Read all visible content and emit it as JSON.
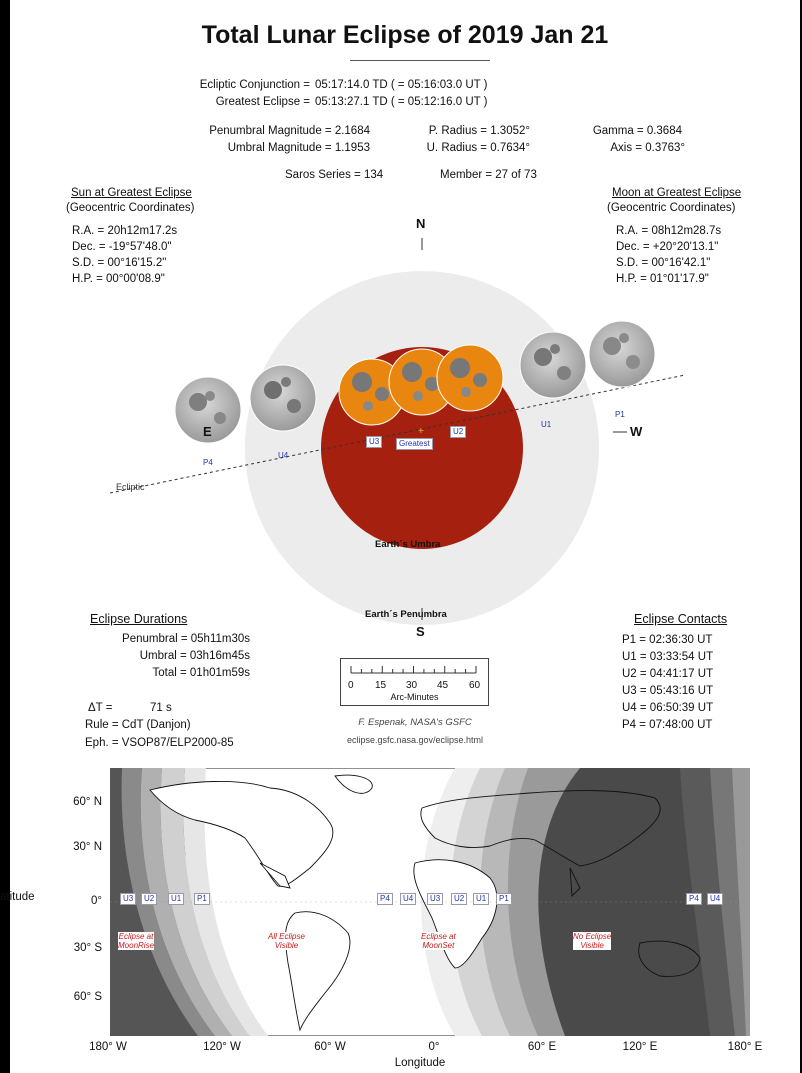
{
  "title": "Total Lunar Eclipse of  2019 Jan 21",
  "header": {
    "conjunction_label": "Ecliptic Conjunction =",
    "conjunction_value": "05:17:14.0 TD   ( = 05:16:03.0 UT )",
    "greatest_label": "Greatest Eclipse =",
    "greatest_value": "05:13:27.1 TD   ( = 05:12:16.0 UT )"
  },
  "magnitudes": {
    "penumbral": "Penumbral Magnitude =  2.1684",
    "umbral": "Umbral Magnitude =  1.1953",
    "p_radius": "P. Radius = 1.3052°",
    "u_radius": "U. Radius = 0.7634°",
    "gamma": "Gamma =  0.3684",
    "axis": "Axis =  0.3763°"
  },
  "saros": {
    "series": "Saros Series = 134",
    "member": "Member = 27 of 73"
  },
  "sun": {
    "heading": "Sun at Greatest Eclipse",
    "sub": "(Geocentric Coordinates)",
    "ra": "R.A. =  20h12m17.2s",
    "dec": "Dec. = -19°57'48.0\"",
    "sd": "S.D. =  00°16'15.2\"",
    "hp": "H.P. =  00°00'08.9\""
  },
  "moon": {
    "heading": "Moon at Greatest Eclipse",
    "sub": "(Geocentric Coordinates)",
    "ra": "R.A. =  08h12m28.7s",
    "dec": "Dec. = +20°20'13.1\"",
    "sd": "S.D. =  00°16'42.1\"",
    "hp": "H.P. =  01°01'17.9\""
  },
  "diagram": {
    "north": "N",
    "south": "S",
    "east": "E",
    "west": "W",
    "ecliptic": "Ecliptic",
    "umbra": "Earth´s Umbra",
    "penumbra": "Earth´s Penumbra",
    "greatest": "Greatest",
    "contacts": {
      "p1": "P1",
      "u1": "U1",
      "u2": "U2",
      "u3": "U3",
      "u4": "U4",
      "p4": "P4"
    },
    "colors": {
      "umbra": "#a6200f",
      "penumbra": "#ececec",
      "moon": "#e8860f"
    }
  },
  "durations": {
    "heading": "Eclipse Durations",
    "penumbral": "Penumbral = 05h11m30s",
    "umbral": "Umbral = 03h16m45s",
    "total": "Total = 01h01m59s"
  },
  "contacts_table": {
    "heading": "Eclipse Contacts",
    "p1": "P1 = 02:36:30 UT",
    "u1": "U1 = 03:33:54 UT",
    "u2": "U2 = 04:41:17 UT",
    "u3": "U3 = 05:43:16 UT",
    "u4": "U4 = 06:50:39 UT",
    "p4": "P4 = 07:48:00 UT"
  },
  "scale": {
    "ticks": [
      "0",
      "15",
      "30",
      "45",
      "60"
    ],
    "label": "Arc-Minutes"
  },
  "misc": {
    "delta_t_label": "ΔT =",
    "delta_t_value": "71 s",
    "rule": "Rule = CdT (Danjon)",
    "eph": "Eph. = VSOP87/ELP2000-85",
    "credit": "F. Espenak, NASA's GSFC",
    "url": "eclipse.gsfc.nasa.gov/eclipse.html"
  },
  "map": {
    "lat_labels": [
      "60° N",
      "30° N",
      "0°",
      "30° S",
      "60° S"
    ],
    "lon_labels": [
      "180° W",
      "120° W",
      "60° W",
      "0°",
      "60° E",
      "120° E",
      "180° E"
    ],
    "xlabel": "Longitude",
    "ylabel": "atitude",
    "west_tags": [
      "U3",
      "U2",
      "U1",
      "P1"
    ],
    "mid_tags": [
      "P4",
      "U4",
      "U3",
      "U2",
      "U1",
      "P1"
    ],
    "east_tags": [
      "P4",
      "U4"
    ],
    "regions": {
      "moonrise": [
        "Eclipse at",
        "MoonRise"
      ],
      "visible": [
        "All Eclipse",
        "Visible"
      ],
      "moonset": [
        "Eclipse at",
        "MoonSet"
      ],
      "none": [
        "No Eclipse",
        "Visible"
      ]
    }
  }
}
